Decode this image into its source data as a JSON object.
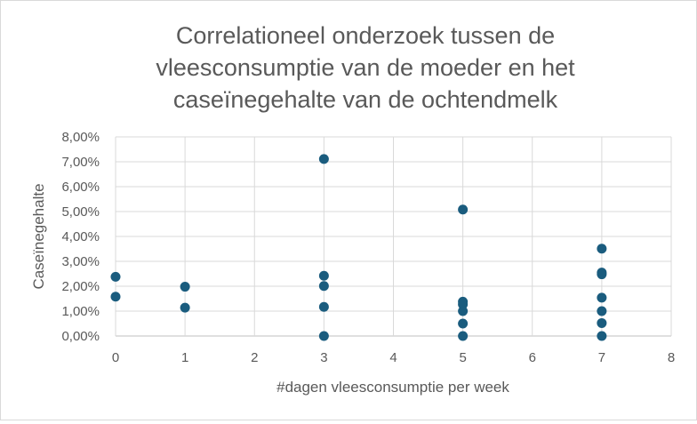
{
  "chart_data": {
    "type": "scatter",
    "title_lines": [
      "Correlationeel onderzoek tussen de",
      "vleesconsumptie van de moeder en het",
      "caseïnegehalte van de ochtendmelk"
    ],
    "xlabel": "#dagen vleesconsumptie per week",
    "ylabel": "Caseïnegehalte",
    "xlim": [
      0,
      8
    ],
    "ylim": [
      0,
      0.08
    ],
    "x_ticks": [
      0,
      1,
      2,
      3,
      4,
      5,
      6,
      7,
      8
    ],
    "y_ticks": [
      "0,00%",
      "1,00%",
      "2,00%",
      "3,00%",
      "4,00%",
      "5,00%",
      "6,00%",
      "7,00%",
      "8,00%"
    ],
    "grid": true,
    "legend": "none",
    "marker_color": "#1a5c7e",
    "series": [
      {
        "points": [
          {
            "x": 0,
            "y": 0.0238
          },
          {
            "x": 0,
            "y": 0.0158
          },
          {
            "x": 1,
            "y": 0.0198
          },
          {
            "x": 1,
            "y": 0.0114
          },
          {
            "x": 3,
            "y": 0.0711
          },
          {
            "x": 3,
            "y": 0.0242
          },
          {
            "x": 3,
            "y": 0.0201
          },
          {
            "x": 3,
            "y": 0.0117
          },
          {
            "x": 3,
            "y": 0.0
          },
          {
            "x": 5,
            "y": 0.0508
          },
          {
            "x": 5,
            "y": 0.0138
          },
          {
            "x": 5,
            "y": 0.0127
          },
          {
            "x": 5,
            "y": 0.01
          },
          {
            "x": 5,
            "y": 0.005
          },
          {
            "x": 5,
            "y": 0.0
          },
          {
            "x": 7,
            "y": 0.0351
          },
          {
            "x": 7,
            "y": 0.0255
          },
          {
            "x": 7,
            "y": 0.0248
          },
          {
            "x": 7,
            "y": 0.0154
          },
          {
            "x": 7,
            "y": 0.01
          },
          {
            "x": 7,
            "y": 0.0052
          },
          {
            "x": 7,
            "y": 0.0
          }
        ]
      }
    ]
  }
}
